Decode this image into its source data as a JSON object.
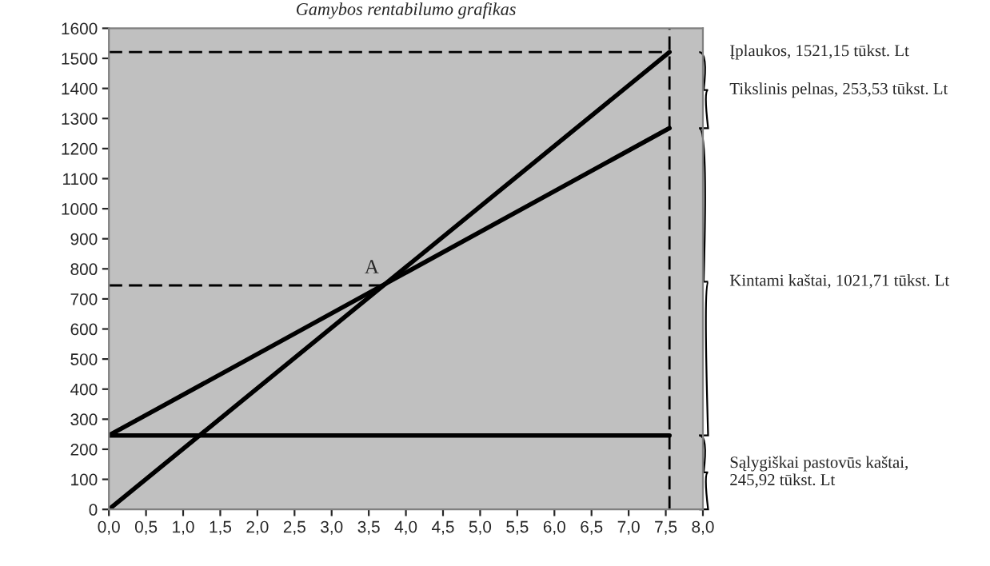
{
  "chart_data": {
    "type": "line",
    "title": "Gamybos rentabilumo grafikas",
    "xlim": [
      0,
      8
    ],
    "xticks": [
      {
        "value": 0,
        "label": "0,0"
      },
      {
        "value": 0.5,
        "label": "0,5"
      },
      {
        "value": 1,
        "label": "1,0"
      },
      {
        "value": 1.5,
        "label": "1,5"
      },
      {
        "value": 2,
        "label": "2,0"
      },
      {
        "value": 2.5,
        "label": "2,5"
      },
      {
        "value": 3,
        "label": "3,0"
      },
      {
        "value": 3.5,
        "label": "3,5"
      },
      {
        "value": 4,
        "label": "4,0"
      },
      {
        "value": 4.5,
        "label": "4,5"
      },
      {
        "value": 5,
        "label": "5,0"
      },
      {
        "value": 5.5,
        "label": "5,5"
      },
      {
        "value": 6,
        "label": "6,0"
      },
      {
        "value": 6.5,
        "label": "6,5"
      },
      {
        "value": 7,
        "label": "7,0"
      },
      {
        "value": 7.5,
        "label": "7,5"
      },
      {
        "value": 8,
        "label": "8,0"
      }
    ],
    "ylim": [
      0,
      1600
    ],
    "yticks": [
      0,
      100,
      200,
      300,
      400,
      500,
      600,
      700,
      800,
      900,
      1000,
      1100,
      1200,
      1300,
      1400,
      1500,
      1600
    ],
    "grid": false,
    "legend": false,
    "marker": "none",
    "series": [
      {
        "color": "#000000",
        "x": [
          0,
          7.55
        ],
        "values": [
          0,
          1521
        ],
        "line_style": "solid"
      },
      {
        "color": "#000000",
        "x": [
          0,
          7.55
        ],
        "values": [
          246,
          1268
        ],
        "line_style": "solid"
      },
      {
        "color": "#000000",
        "x": [
          0,
          7.55
        ],
        "values": [
          246,
          246
        ],
        "line_style": "solid"
      },
      {
        "color": "#000000",
        "x": [
          0,
          7.55
        ],
        "values": [
          1521,
          1521
        ],
        "line_style": "dashed"
      },
      {
        "color": "#000000",
        "x": [
          0,
          3.69
        ],
        "values": [
          745,
          745
        ],
        "line_style": "dashed"
      },
      {
        "color": "#000000",
        "x": [
          7.55,
          7.55
        ],
        "values": [
          0,
          1600
        ],
        "line_style": "dashed"
      }
    ],
    "annotations": [
      {
        "text": "A",
        "x": 3.69,
        "y": 749
      },
      "Įplaukos, 1521,15 tūkst. Lt",
      "Tikslinis pelnas, 253,53 tūkst. Lt",
      "Kintami kaštai, 1021,71 tūkst. Lt",
      "Sąlygiškai pastovūs kaštai,\n245,92 tūkst. Lt"
    ]
  }
}
